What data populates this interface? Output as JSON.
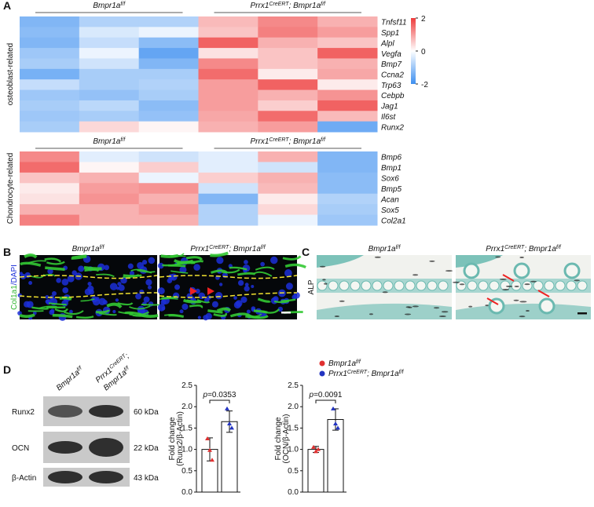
{
  "panel_labels": {
    "a": "A",
    "b": "B",
    "c": "C",
    "d": "D"
  },
  "chart_data": [
    {
      "type": "heatmap",
      "row_group_label": "osteoblast-related",
      "column_groups": [
        [
          "Bmpr1a",
          "f/f"
        ],
        [
          "Prrx1",
          "CreERT",
          "; Bmpr1a",
          "f/f"
        ]
      ],
      "rows": [
        "Tnfsf11",
        "Spp1",
        "Alpl",
        "Vegfa",
        "Bmp7",
        "Ccna2",
        "Trp63",
        "Cebpb",
        "Jag1",
        "Il6st",
        "Runx2"
      ],
      "values": [
        [
          -1.3,
          -0.8,
          -0.8,
          0.7,
          1.2,
          0.8
        ],
        [
          -1.2,
          -0.4,
          -0.2,
          0.6,
          1.3,
          1.0
        ],
        [
          -1.3,
          -0.6,
          -1.2,
          1.6,
          0.8,
          0.6
        ],
        [
          -1.0,
          -0.2,
          -1.6,
          0.3,
          0.6,
          1.6
        ],
        [
          -0.9,
          -0.5,
          -1.3,
          1.2,
          0.6,
          0.8
        ],
        [
          -1.4,
          -0.9,
          -0.9,
          1.5,
          0.2,
          0.9
        ],
        [
          -0.6,
          -0.9,
          -0.8,
          1.0,
          1.6,
          0.2
        ],
        [
          -1.0,
          -1.1,
          -0.9,
          1.0,
          0.8,
          1.1
        ],
        [
          -0.9,
          -0.7,
          -1.2,
          1.0,
          0.5,
          1.6
        ],
        [
          -1.0,
          -0.9,
          -1.1,
          0.9,
          1.5,
          0.7
        ],
        [
          -0.9,
          0.4,
          0.1,
          0.8,
          1.0,
          -1.5
        ]
      ],
      "zlim": [
        -2,
        2
      ],
      "zticks": [
        2,
        0,
        -2
      ],
      "colors": [
        "#3d8ff0",
        "#ffffff",
        "#ee3b3b"
      ]
    },
    {
      "type": "heatmap",
      "row_group_label": "Chondrocyte-related",
      "column_groups": [
        [
          "Bmpr1a",
          "f/f"
        ],
        [
          "Prrx1",
          "CreERT",
          "; Bmpr1a",
          "f/f"
        ]
      ],
      "rows": [
        "Bmp6",
        "Bmp1",
        "Sox6",
        "Bmp5",
        "Acan",
        "Sox5",
        "Col2a1"
      ],
      "values": [
        [
          1.2,
          -0.3,
          -0.5,
          -0.3,
          0.8,
          -1.3
        ],
        [
          1.5,
          0.1,
          0.5,
          -0.3,
          -0.5,
          -1.3
        ],
        [
          0.6,
          0.8,
          -0.2,
          0.5,
          0.8,
          -1.2
        ],
        [
          0.2,
          1.0,
          1.1,
          -0.5,
          0.7,
          -1.2
        ],
        [
          0.3,
          1.1,
          0.8,
          -1.3,
          0.2,
          -0.8
        ],
        [
          0.8,
          0.8,
          1.0,
          -0.8,
          0.4,
          -0.9
        ],
        [
          1.3,
          0.8,
          0.8,
          -0.8,
          -0.2,
          -1.0
        ]
      ],
      "zlim": [
        -2,
        2
      ],
      "colors": [
        "#3d8ff0",
        "#ffffff",
        "#ee3b3b"
      ]
    },
    {
      "type": "bar",
      "ylabel": [
        "Fold change",
        "(Runx2/β-Actin)"
      ],
      "values": [
        1.0,
        1.65
      ],
      "errors": [
        0.27,
        0.25
      ],
      "points": [
        [
          1.25,
          0.98,
          0.75
        ],
        [
          1.95,
          1.6,
          1.5
        ]
      ],
      "annotation": {
        "italic": "p",
        "text": "=0.0353"
      },
      "ylim": [
        0,
        2.5
      ],
      "yticks": [
        {
          "value": 0,
          "label": "0.0"
        },
        0.5,
        {
          "value": 1,
          "label": "1.0"
        },
        1.5,
        {
          "value": 2,
          "label": "2.0"
        },
        2.5
      ]
    },
    {
      "type": "bar",
      "ylabel": [
        "Fold change",
        "(OCN/β-Actin)"
      ],
      "values": [
        1.0,
        1.7
      ],
      "errors": [
        0.07,
        0.25
      ],
      "points": [
        [
          1.05,
          0.95,
          1.0
        ],
        [
          1.95,
          1.6,
          1.5
        ]
      ],
      "annotation": {
        "italic": "p",
        "text": "=0.0091"
      },
      "ylim": [
        0,
        2.5
      ],
      "yticks": [
        {
          "value": 0,
          "label": "0.0"
        },
        0.5,
        {
          "value": 1,
          "label": "1.0"
        },
        1.5,
        {
          "value": 2,
          "label": "2.0"
        },
        2.5
      ]
    }
  ],
  "panel_b": {
    "titles": [
      [
        "Bmpr1a",
        "f/f"
      ],
      [
        "Prrx1",
        "CreERT",
        "; Bmpr1a",
        "f/f"
      ]
    ],
    "stain": [
      "Col1a1",
      "/DAPI"
    ]
  },
  "panel_c": {
    "titles": [
      [
        "Bmpr1a",
        "f/f"
      ],
      [
        "Prrx1",
        "CreERT",
        "; Bmpr1a",
        "f/f"
      ]
    ],
    "stain": "ALP"
  },
  "blot": {
    "lanes": [
      [
        [
          "Bmpr1a",
          "f/f"
        ]
      ],
      [
        [
          "Prrx1",
          "CreERT",
          ";"
        ],
        [
          "Bmpr1a",
          "f/f"
        ]
      ]
    ],
    "proteins": [
      "Runx2",
      "OCN",
      "β-Actin"
    ],
    "sizes": [
      "60 kDa",
      "22 kDa",
      "43 kDa"
    ]
  },
  "legend": [
    {
      "label": [
        "Bmpr1a",
        "f/f"
      ],
      "color": "#e03030"
    },
    {
      "label": [
        "Prrx1",
        "CreERT",
        "; Bmpr1a",
        "f/f"
      ],
      "color": "#2233c0"
    }
  ]
}
